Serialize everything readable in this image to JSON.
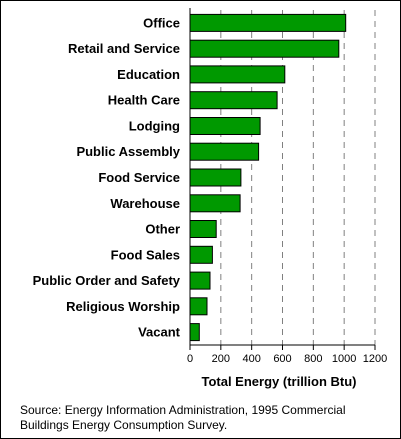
{
  "chart_data": {
    "type": "bar",
    "orientation": "horizontal",
    "categories": [
      "Office",
      "Retail and Service",
      "Education",
      "Health Care",
      "Lodging",
      "Public Assembly",
      "Food Service",
      "Warehouse",
      "Other",
      "Food Sales",
      "Public Order and Safety",
      "Religious Worship",
      "Vacant"
    ],
    "values": [
      1010,
      965,
      615,
      565,
      455,
      445,
      330,
      325,
      170,
      145,
      130,
      110,
      60
    ],
    "xlabel": "Total Energy (trillion Btu)",
    "xlim": [
      0,
      1200
    ],
    "xticks": [
      0,
      200,
      400,
      600,
      800,
      1000,
      1200
    ],
    "grid": "vertical-dashed",
    "bar_color": "#009900"
  },
  "source_note": "Source:  Energy Information Administration, 1995 Commercial Buildings Energy Consumption Survey."
}
